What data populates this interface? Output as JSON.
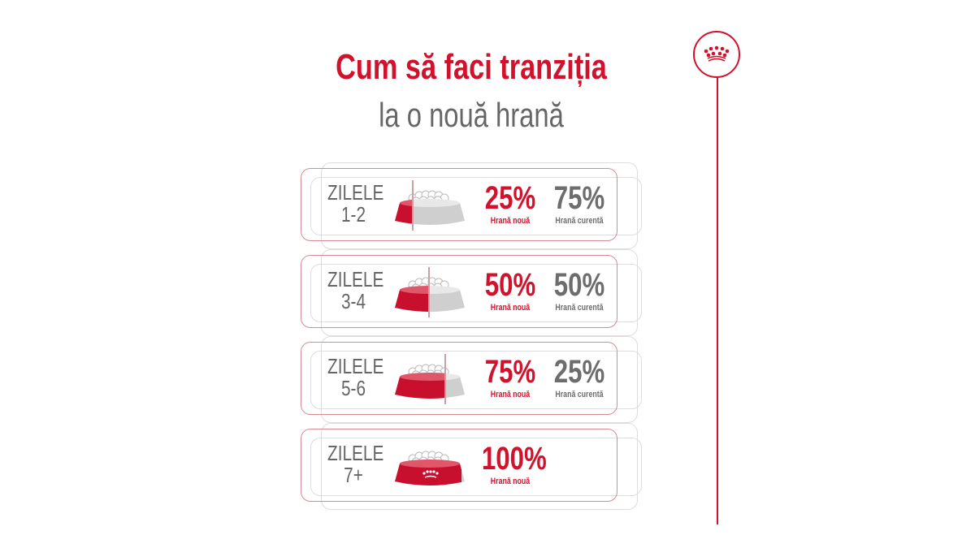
{
  "title": "Cum să faci tranziția",
  "subtitle": "la o nouă hrană",
  "colors": {
    "brand_red": "#d2112c",
    "gray": "#6d6d6d"
  },
  "logo_icon": "royal-crown-icon",
  "steps": [
    {
      "day_label": "ZILELE",
      "days": "1-2",
      "new_pct": "25%",
      "new_label": "Hrană nouă",
      "current_pct": "75%",
      "current_label": "Hrană curentă",
      "new_fraction": 0.25
    },
    {
      "day_label": "ZILELE",
      "days": "3-4",
      "new_pct": "50%",
      "new_label": "Hrană nouă",
      "current_pct": "50%",
      "current_label": "Hrană curentă",
      "new_fraction": 0.5
    },
    {
      "day_label": "ZILELE",
      "days": "5-6",
      "new_pct": "75%",
      "new_label": "Hrană nouă",
      "current_pct": "25%",
      "current_label": "Hrană curentă",
      "new_fraction": 0.75
    },
    {
      "day_label": "ZILELE",
      "days": "7+",
      "new_pct": "100%",
      "new_label": "Hrană nouă",
      "new_fraction": 1
    }
  ]
}
